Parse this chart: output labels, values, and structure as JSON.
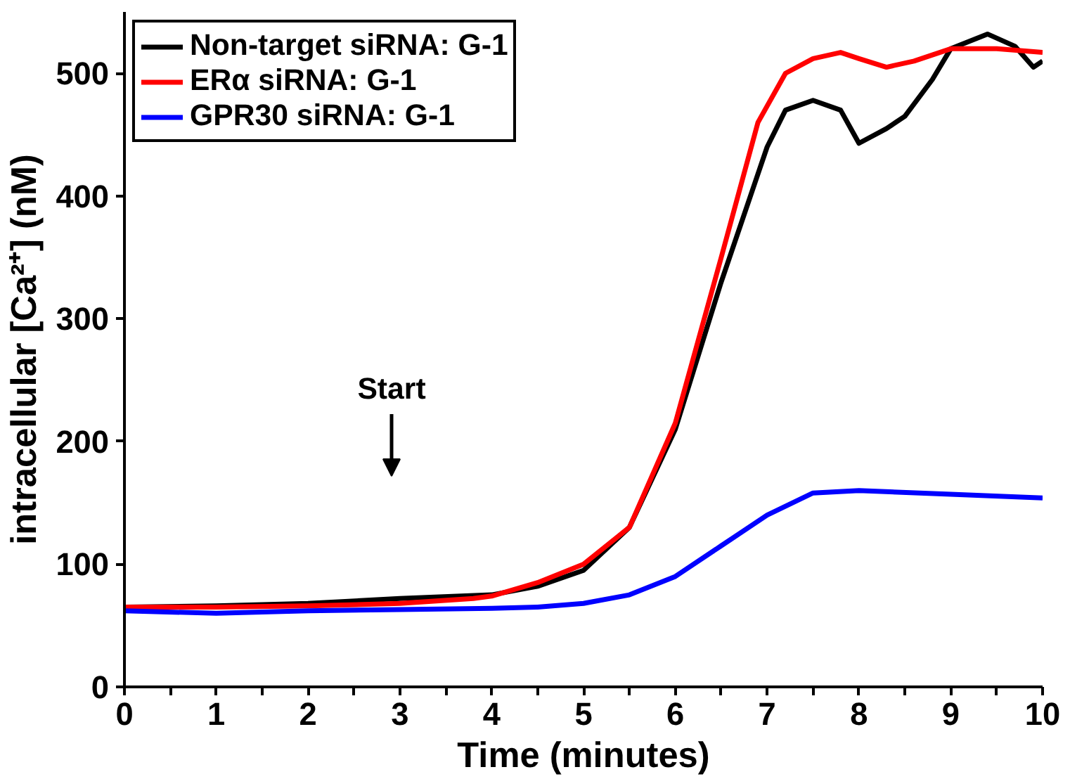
{
  "chart_data": {
    "type": "line",
    "xlabel": "Time (minutes)",
    "ylabel": "intracellular [Ca²⁺] (nM)",
    "xlim": [
      0,
      10
    ],
    "ylim": [
      0,
      550
    ],
    "xticks": [
      0,
      {
        "value": 0.5,
        "label": null
      },
      1,
      {
        "value": 1.5,
        "label": null
      },
      2,
      {
        "value": 2.5,
        "label": null
      },
      3,
      {
        "value": 3.5,
        "label": null
      },
      4,
      {
        "value": 4.5,
        "label": null
      },
      5,
      {
        "value": 5.5,
        "label": null
      },
      6,
      {
        "value": 6.5,
        "label": null
      },
      7,
      {
        "value": 7.5,
        "label": null
      },
      8,
      {
        "value": 8.5,
        "label": null
      },
      9,
      {
        "value": 9.5,
        "label": null
      },
      10
    ],
    "yticks": [
      0,
      100,
      200,
      300,
      400,
      500
    ],
    "grid": false,
    "legend": "top left",
    "marker": "none",
    "line_style": "solid",
    "annotations": [
      "Start"
    ],
    "series": [
      {
        "name": "Non-target siRNA: G-1",
        "color": "#000000",
        "x": [
          0,
          1,
          2,
          3,
          4,
          4.5,
          5,
          5.5,
          6,
          6.5,
          7,
          7.2,
          7.5,
          7.8,
          8,
          8.3,
          8.5,
          8.8,
          9,
          9.4,
          9.7,
          9.9,
          10
        ],
        "values": [
          65,
          66,
          68,
          72,
          75,
          82,
          95,
          130,
          210,
          330,
          440,
          470,
          478,
          470,
          443,
          455,
          465,
          495,
          520,
          532,
          522,
          505,
          510
        ]
      },
      {
        "name": "ERα siRNA: G-1",
        "color": "#ff0000",
        "x": [
          0,
          1,
          2,
          3,
          3.8,
          4,
          4.5,
          5,
          5.5,
          6,
          6.5,
          6.9,
          7.2,
          7.5,
          7.8,
          8,
          8.3,
          8.6,
          9,
          9.5,
          10
        ],
        "values": [
          65,
          65,
          66,
          68,
          72,
          74,
          85,
          100,
          130,
          215,
          350,
          460,
          500,
          512,
          517,
          512,
          505,
          510,
          520,
          520,
          517
        ]
      },
      {
        "name": "GPR30 siRNA: G-1",
        "color": "#0000ff",
        "x": [
          0,
          1,
          2,
          3,
          4,
          4.5,
          5,
          5.5,
          6,
          6.5,
          7,
          7.5,
          8,
          9,
          10
        ],
        "values": [
          62,
          60,
          62,
          63,
          64,
          65,
          68,
          75,
          90,
          115,
          140,
          158,
          160,
          157,
          154
        ]
      }
    ]
  }
}
